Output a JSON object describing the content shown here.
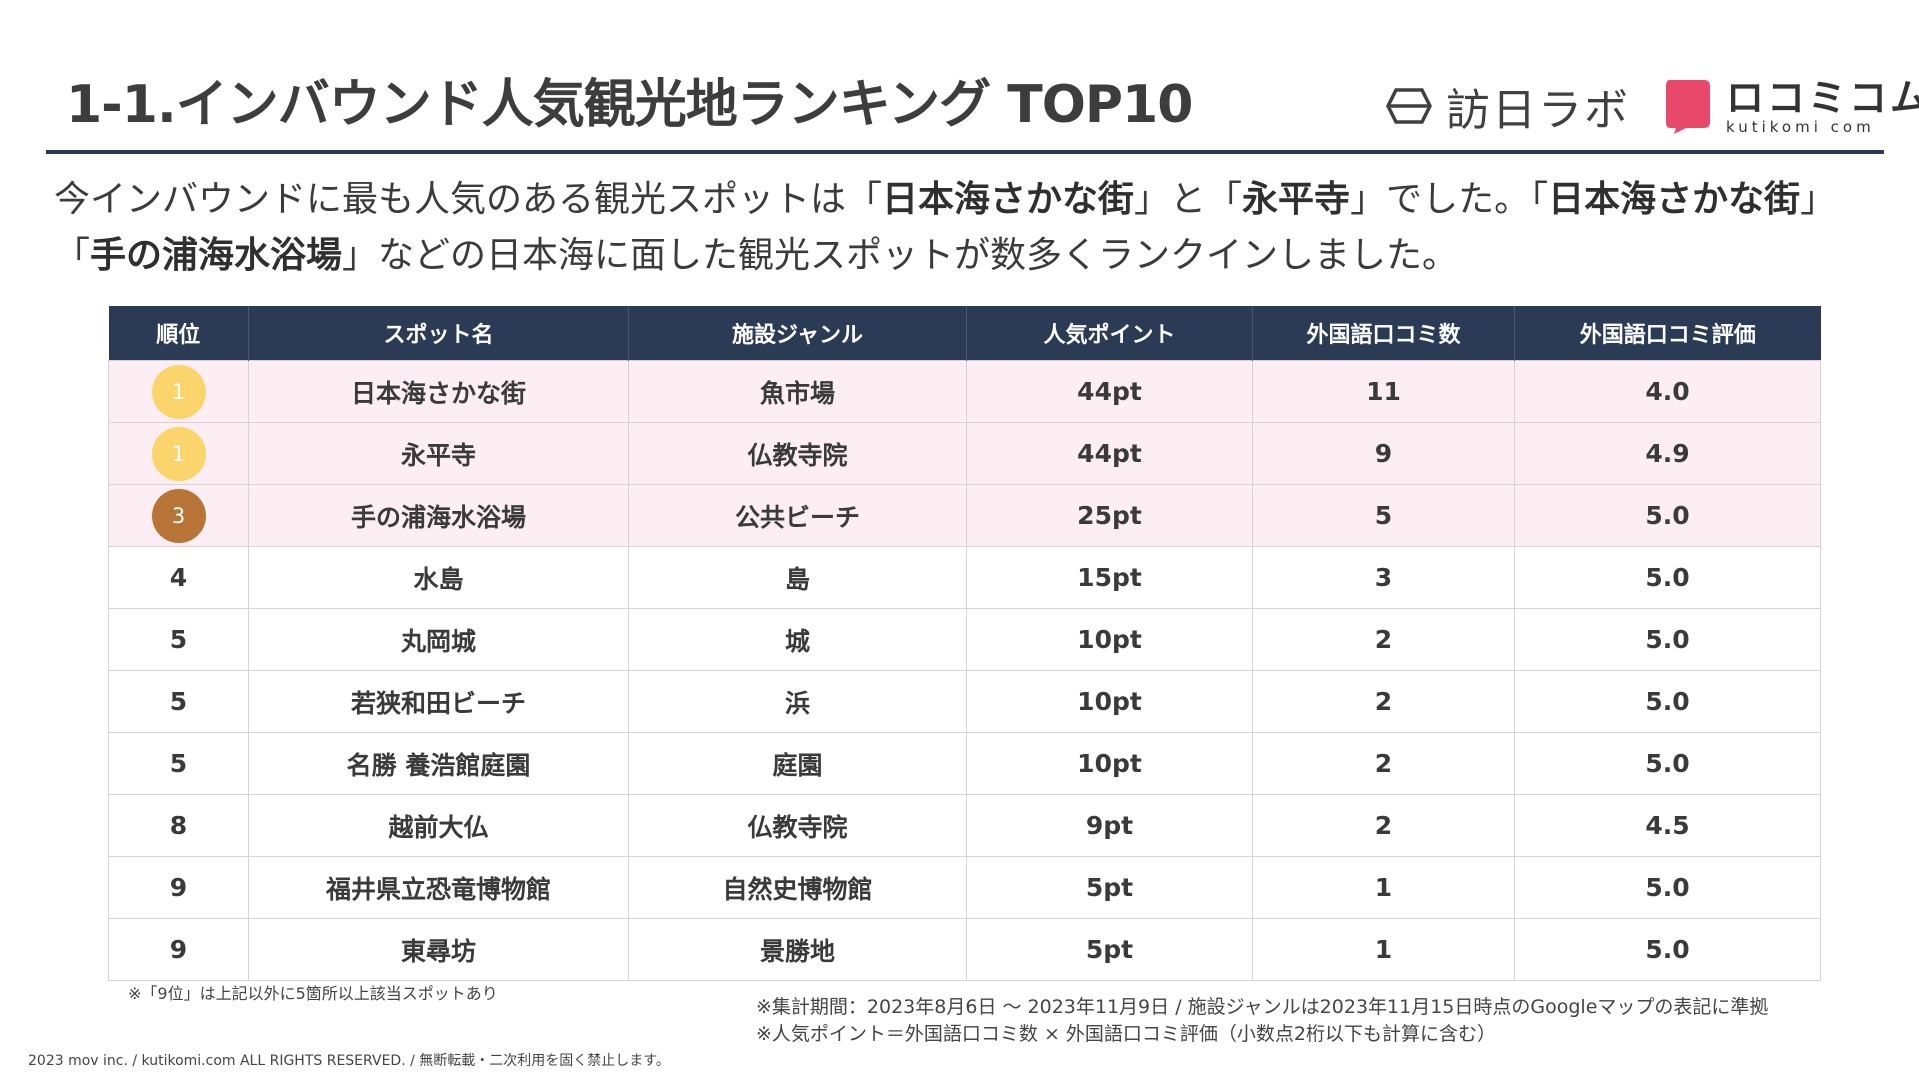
{
  "title": "1-1.インバウンド人気観光地ランキング TOP10",
  "logos": {
    "houjitsu": "訪日ラボ",
    "kutikomi_main": "ロコミコム",
    "kutikomi_sub": "kutikomi com",
    "colors": {
      "kutikomi_mark": "#e8496a",
      "houjitsu_mark": "#404040"
    }
  },
  "lead": {
    "p1": "今インバウンドに最も人気のある観光スポットは「",
    "b1": "日本海さかな街",
    "p2": "」と「",
    "b2": "永平寺",
    "p3": "」でした。「",
    "b3": "日本海さかな街",
    "p4": "」「",
    "b4": "手の浦海水浴場",
    "p5": "」などの日本海に面した観光スポットが数多くランクインしました。"
  },
  "table": {
    "headers": [
      "順位",
      "スポット名",
      "施設ジャンル",
      "人気ポイント",
      "外国語口コミ数",
      "外国語口コミ評価"
    ],
    "rows": [
      {
        "rank": "1",
        "name": "日本海さかな街",
        "genre": "魚市場",
        "points": "44pt",
        "reviews": "11",
        "rating": "4.0"
      },
      {
        "rank": "1",
        "name": "永平寺",
        "genre": "仏教寺院",
        "points": "44pt",
        "reviews": "9",
        "rating": "4.9"
      },
      {
        "rank": "3",
        "name": "手の浦海水浴場",
        "genre": "公共ビーチ",
        "points": "25pt",
        "reviews": "5",
        "rating": "5.0"
      },
      {
        "rank": "4",
        "name": "水島",
        "genre": "島",
        "points": "15pt",
        "reviews": "3",
        "rating": "5.0"
      },
      {
        "rank": "5",
        "name": "丸岡城",
        "genre": "城",
        "points": "10pt",
        "reviews": "2",
        "rating": "5.0"
      },
      {
        "rank": "5",
        "name": "若狭和田ビーチ",
        "genre": "浜",
        "points": "10pt",
        "reviews": "2",
        "rating": "5.0"
      },
      {
        "rank": "5",
        "name": "名勝 養浩館庭園",
        "genre": "庭園",
        "points": "10pt",
        "reviews": "2",
        "rating": "5.0"
      },
      {
        "rank": "8",
        "name": "越前大仏",
        "genre": "仏教寺院",
        "points": "9pt",
        "reviews": "2",
        "rating": "4.5"
      },
      {
        "rank": "9",
        "name": "福井県立恐竜博物館",
        "genre": "自然史博物館",
        "points": "5pt",
        "reviews": "1",
        "rating": "5.0"
      },
      {
        "rank": "9",
        "name": "東尋坊",
        "genre": "景勝地",
        "points": "5pt",
        "reviews": "1",
        "rating": "5.0"
      }
    ],
    "colors": {
      "header_bg": "#2b3a55",
      "highlight_bg": "#fdeef3",
      "medal_gold": "#fbd56b",
      "medal_bronze": "#b77436"
    }
  },
  "notes": {
    "left": "※「9位」は上記以外に5箇所以上該当スポットあり",
    "right1": "※集計期間：2023年8月6日 〜 2023年11月9日 / 施設ジャンルは2023年11月15日時点のGoogleマップの表記に準拠",
    "right2": "※人気ポイント＝外国語口コミ数 × 外国語口コミ評価（小数点2桁以下も計算に含む）"
  },
  "footer": "2023 mov inc. / kutikomi.com ALL RIGHTS RESERVED. / 無断転載・二次利用を固く禁止します。"
}
